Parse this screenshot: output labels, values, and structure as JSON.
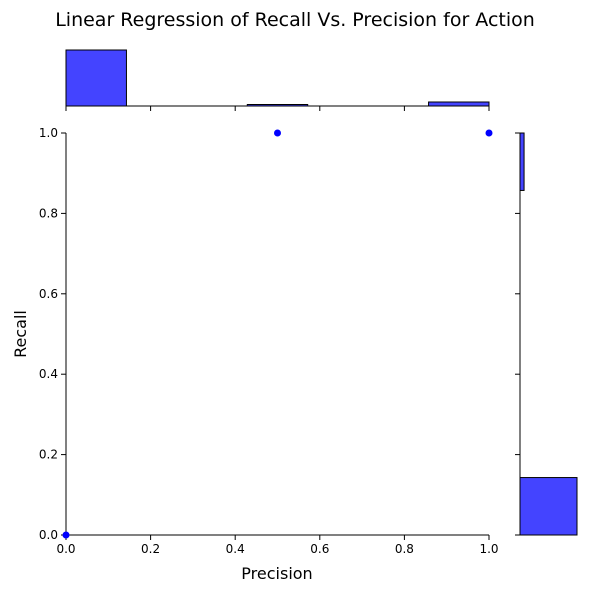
{
  "chart_data": {
    "type": "scatter",
    "title": "Linear Regression of Recall Vs. Precision for Action",
    "xlabel": "Precision",
    "ylabel": "Recall",
    "xlim": [
      0.0,
      1.0
    ],
    "ylim": [
      0.0,
      1.0
    ],
    "xticks": [
      "0.0",
      "0.2",
      "0.4",
      "0.6",
      "0.8",
      "1.0"
    ],
    "yticks": [
      "0.0",
      "0.2",
      "0.4",
      "0.6",
      "0.8",
      "1.0"
    ],
    "grid": false,
    "point_color": "#0000ff",
    "hist_color": "#4444ff",
    "points": [
      {
        "x": 0.0,
        "y": 0.0
      },
      {
        "x": 0.5,
        "y": 1.0
      },
      {
        "x": 1.0,
        "y": 1.0
      }
    ],
    "marginal_x_hist": {
      "bin_edges": [
        0.0,
        0.1429,
        0.2857,
        0.4286,
        0.5714,
        0.7143,
        0.8571,
        1.0
      ],
      "counts": [
        14,
        0,
        0,
        0.3,
        0,
        0,
        1
      ]
    },
    "marginal_y_hist": {
      "bin_edges": [
        0.0,
        0.1429,
        0.2857,
        0.4286,
        0.5714,
        0.7143,
        0.8571,
        1.0
      ],
      "counts": [
        14,
        0,
        0,
        0,
        0,
        0,
        1
      ]
    }
  }
}
